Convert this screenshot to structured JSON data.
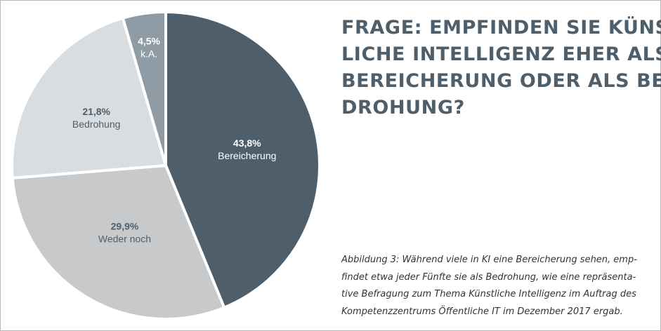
{
  "title_lines": [
    "FRAGE: EMPFINDEN SIE KÜNST-",
    "LICHE INTELLIGENZ EHER ALS",
    "BEREICHERUNG ODER ALS BE-",
    "DROHUNG?"
  ],
  "caption_lines": [
    "Abbildung 3: Während viele in KI eine Bereicherung sehen, emp-",
    "findet etwa jeder Fünfte sie als Bedrohung, wie eine repräsenta-",
    "tive Befragung zum Thema Künstliche Intelligenz im Auftrag des",
    "Kompetenzzentrums Öffentliche IT im Dezember 2017 ergab."
  ],
  "chart_data": {
    "type": "pie",
    "slices": [
      {
        "label": "Bereicherung",
        "value": 43.8,
        "value_label": "43,8%",
        "color": "#4e5f6b",
        "text_color": "#ffffff"
      },
      {
        "label": "Weder noch",
        "value": 29.9,
        "value_label": "29,9%",
        "color": "#c8c9cb",
        "text_color": "#4e5f6b"
      },
      {
        "label": "Bedrohung",
        "value": 21.8,
        "value_label": "21,8%",
        "color": "#d8dde2",
        "text_color": "#4e5f6b"
      },
      {
        "label": "k.A.",
        "value": 4.5,
        "value_label": "4,5%",
        "color": "#8f9ca6",
        "text_color": "#ffffff"
      }
    ],
    "start": "12 o'clock",
    "direction": "clockwise",
    "legend": "none"
  }
}
